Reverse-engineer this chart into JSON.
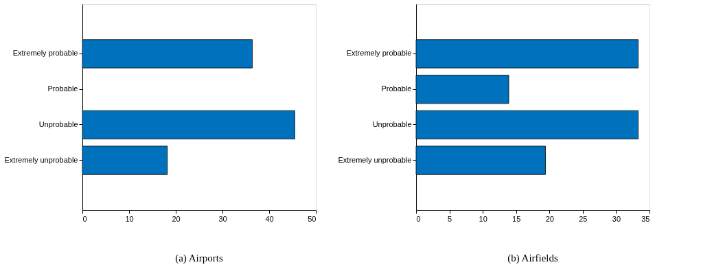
{
  "chart_data": [
    {
      "type": "bar",
      "orientation": "horizontal",
      "title": "(a) Airports",
      "categories": [
        "Extremely probable",
        "Probable",
        "Unprobable",
        "Extremely unprobable"
      ],
      "values": [
        36.4,
        0,
        45.5,
        18.2
      ],
      "color": "#0072bd",
      "xlim": [
        0,
        50
      ],
      "xticks": [
        0,
        10,
        20,
        30,
        40,
        50
      ],
      "grid": false
    },
    {
      "type": "bar",
      "orientation": "horizontal",
      "title": "(b) Airfields",
      "categories": [
        "Extremely probable",
        "Probable",
        "Unprobable",
        "Extremely unprobable"
      ],
      "values": [
        33.3,
        13.9,
        33.3,
        19.4
      ],
      "color": "#0072bd",
      "xlim": [
        0,
        35
      ],
      "xticks": [
        0,
        5,
        10,
        15,
        20,
        25,
        30,
        35
      ],
      "grid": false
    }
  ]
}
